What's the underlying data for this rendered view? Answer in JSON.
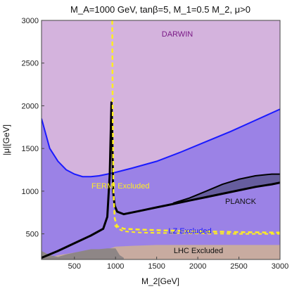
{
  "chart_data": {
    "type": "area",
    "title": "M_A=1000 GeV, tanβ=5, M_1=0.5 M_2, μ>0",
    "xlabel": "M_2[GeV]",
    "ylabel": "|μ|[GeV]",
    "xlim": [
      100,
      3000
    ],
    "ylim": [
      200,
      3000
    ],
    "x_ticks": [
      "500",
      "1000",
      "1500",
      "2000",
      "2500",
      "3000"
    ],
    "x_tick_values": [
      500,
      1000,
      1500,
      2000,
      2500,
      3000
    ],
    "y_ticks": [
      "500",
      "1000",
      "1500",
      "2000",
      "2500",
      "3000"
    ],
    "y_tick_values": [
      500,
      1000,
      1500,
      2000,
      2500,
      3000
    ],
    "grid": false,
    "colors": {
      "darwin": "#d4b3dd",
      "lz": "#9b82e6",
      "planck_region": "#665d9e",
      "lhc": "#c8aba0",
      "lhc_dark": "#8e8686",
      "darwin_line": "#1a1aff",
      "fermi_line": "#ffee22",
      "planck_line": "#000000",
      "darwin_text": "#7a1a86",
      "lz_text": "#1a1aff",
      "fermi_text": "#ffee22",
      "planck_text": "#111111",
      "lhc_text": "#111111"
    },
    "series": [
      {
        "name": "DARWIN",
        "x": [
          100,
          200,
          300,
          400,
          500,
          600,
          700,
          800,
          900,
          1000,
          1200,
          1500,
          1800,
          2100,
          2400,
          2700,
          3000
        ],
        "y": [
          1850,
          1500,
          1350,
          1250,
          1200,
          1170,
          1170,
          1180,
          1200,
          1220,
          1270,
          1350,
          1460,
          1580,
          1700,
          1830,
          1960
        ]
      },
      {
        "name": "PLANCK",
        "x": [
          100,
          300,
          500,
          700,
          850,
          900,
          930,
          950,
          960,
          970,
          990,
          1020,
          1100,
          1300,
          1500,
          1700,
          1900,
          2100,
          2300,
          2500,
          2700,
          2900,
          3000
        ],
        "y": [
          220,
          300,
          390,
          480,
          560,
          700,
          1200,
          2050,
          1700,
          1000,
          830,
          760,
          730,
          770,
          810,
          850,
          890,
          930,
          970,
          1010,
          1050,
          1080,
          1100
        ]
      },
      {
        "name": "PLANCK upper",
        "x": [
          1700,
          1900,
          2100,
          2300,
          2500,
          2700,
          2900,
          3000
        ],
        "y": [
          860,
          920,
          1000,
          1080,
          1140,
          1180,
          1200,
          1200
        ]
      },
      {
        "name": "FERMI",
        "x": [
          960,
          965,
          975,
          990,
          1020,
          1100,
          1300,
          1600,
          2000,
          2500,
          3000
        ],
        "y": [
          3000,
          2000,
          1000,
          680,
          590,
          560,
          550,
          540,
          530,
          520,
          515
        ]
      },
      {
        "name": "LZ",
        "x": [
          990,
          1030,
          1100,
          1300,
          1600,
          2000,
          2500,
          3000
        ],
        "y": [
          600,
          560,
          530,
          515,
          510,
          505,
          500,
          500
        ]
      },
      {
        "name": "LHC",
        "x": [
          100,
          300,
          500,
          700,
          900,
          1000,
          1200,
          1500,
          2000,
          2500,
          3000
        ],
        "y": [
          200,
          250,
          280,
          300,
          320,
          350,
          360,
          370,
          370,
          370,
          370
        ]
      },
      {
        "name": "LHC dark",
        "x": [
          100,
          200,
          300,
          400,
          500,
          600,
          700,
          800,
          900,
          1000,
          1050,
          1100,
          1100,
          100
        ],
        "y": [
          300,
          250,
          230,
          260,
          280,
          300,
          320,
          320,
          330,
          330,
          250,
          220,
          200,
          200
        ]
      }
    ],
    "region_labels": {
      "darwin": "DARWIN",
      "fermi": "FERMI Excluded",
      "planck": "PLANCK",
      "lz": "LZ Excluded",
      "lhc": "LHC Excluded"
    }
  }
}
